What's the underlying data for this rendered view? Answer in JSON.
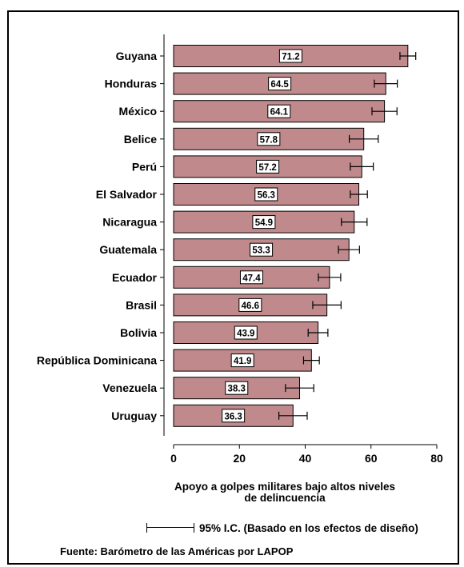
{
  "chart_data": {
    "type": "bar",
    "orientation": "horizontal",
    "categories": [
      "Guyana",
      "Honduras",
      "México",
      "Belice",
      "Perú",
      "El Salvador",
      "Nicaragua",
      "Guatemala",
      "Ecuador",
      "Brasil",
      "Bolivia",
      "República Dominicana",
      "Venezuela",
      "Uruguay"
    ],
    "values": [
      71.2,
      64.5,
      64.1,
      57.8,
      57.2,
      56.3,
      54.9,
      53.3,
      47.4,
      46.6,
      43.9,
      41.9,
      38.3,
      36.3
    ],
    "value_labels": [
      "71.2",
      "64.5",
      "64.1",
      "57.8",
      "57.2",
      "56.3",
      "54.9",
      "53.3",
      "47.4",
      "46.6",
      "43.9",
      "41.9",
      "38.3",
      "36.3"
    ],
    "ci_lower": [
      68.8,
      61.0,
      60.3,
      53.4,
      53.7,
      53.7,
      51.0,
      50.1,
      44.0,
      42.3,
      40.9,
      39.5,
      34.0,
      32.0
    ],
    "ci_upper": [
      73.6,
      68.0,
      67.9,
      62.2,
      60.7,
      58.9,
      58.8,
      56.5,
      50.8,
      50.9,
      46.9,
      44.3,
      42.6,
      40.6
    ],
    "xlim": [
      0,
      80
    ],
    "xticks": [
      0,
      20,
      40,
      60,
      80
    ],
    "xtick_labels": [
      "0",
      "20",
      "40",
      "60",
      "80"
    ],
    "xlabel_line1": "Apoyo a golpes militares bajo altos niveles",
    "xlabel_line2": "de delincuencia",
    "ylabel": "",
    "title": "",
    "bar_color": "#c08a8d",
    "grid": false,
    "legend_position": "bottom",
    "legend_label": "95% I.C. (Basado en los efectos de diseño)",
    "source_note": "Fuente: Barómetro de las Américas por LAPOP"
  }
}
